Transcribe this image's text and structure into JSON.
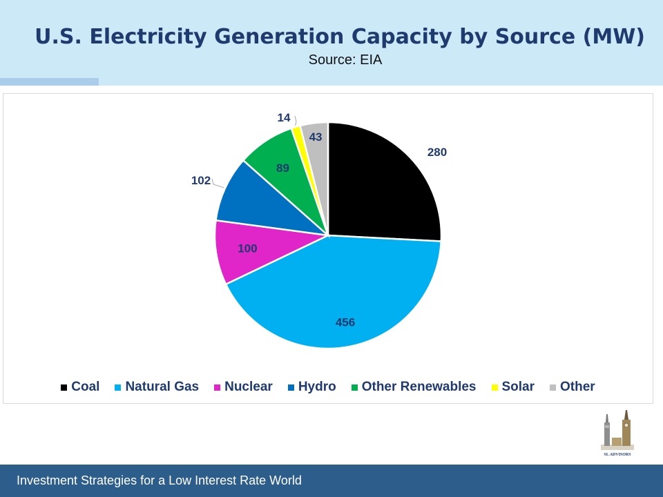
{
  "header": {
    "title": "U.S. Electricity Generation Capacity by Source (MW)",
    "subtitle": "Source: EIA"
  },
  "chart_data": {
    "type": "pie",
    "title": "",
    "categories": [
      "Coal",
      "Natural Gas",
      "Nuclear",
      "Hydro",
      "Other Renewables",
      "Solar",
      "Other"
    ],
    "values": [
      280,
      456,
      100,
      102,
      89,
      14,
      43
    ],
    "colors": [
      "#000000",
      "#00b0f0",
      "#e026c8",
      "#0070c0",
      "#00b050",
      "#ffff00",
      "#bfbfbf"
    ],
    "start_angle_deg": 0,
    "direction": "clockwise",
    "data_labels": true,
    "legend_position": "bottom"
  },
  "logo": {
    "text": "SL ADVISORS",
    "icon": "twin-towers-logo-icon"
  },
  "footer": {
    "text": "Investment Strategies for a Low Interest Rate World",
    "color": "#2d5d8b"
  }
}
